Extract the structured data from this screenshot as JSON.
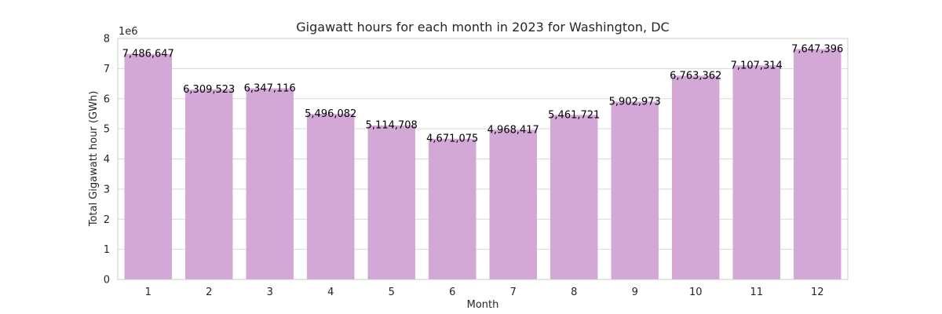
{
  "chart_data": {
    "type": "bar",
    "title": "Gigawatt hours for each month in 2023 for Washington, DC",
    "xlabel": "Month",
    "ylabel": "Total Gigawatt hour (GWh)",
    "y_offset_label": "1e6",
    "y_tick_scale": 1000000,
    "categories": [
      "1",
      "2",
      "3",
      "4",
      "5",
      "6",
      "7",
      "8",
      "9",
      "10",
      "11",
      "12"
    ],
    "values": [
      7486647,
      6309523,
      6347116,
      5496082,
      5114708,
      4671075,
      4968417,
      5461721,
      5902973,
      6763362,
      7107314,
      7647396
    ],
    "value_labels": [
      "7,486,647",
      "6,309,523",
      "6,347,116",
      "5,496,082",
      "5,114,708",
      "4,671,075",
      "4,968,417",
      "5,461,721",
      "5,902,973",
      "6,763,362",
      "7,107,314",
      "7,647,396"
    ],
    "ylim": [
      0,
      8000000
    ],
    "yticks": [
      0,
      1,
      2,
      3,
      4,
      5,
      6,
      7,
      8
    ],
    "grid": true,
    "legend": "none",
    "bar_color": "#d4a8d6"
  }
}
